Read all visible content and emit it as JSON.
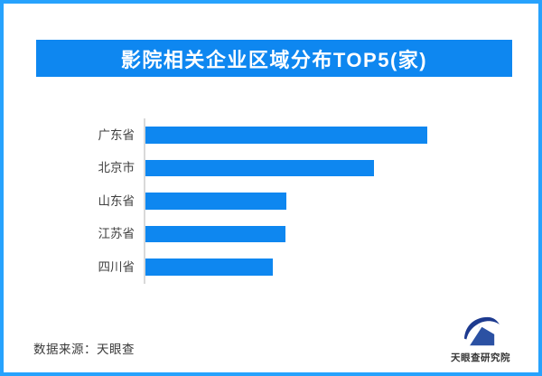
{
  "page": {
    "background": "#ffffff",
    "border_color": "#27a2fd"
  },
  "header": {
    "title": "影院相关企业区域分布TOP5(家)",
    "background": "#0e87f0",
    "text_color": "#ffffff"
  },
  "chart_data": {
    "type": "bar",
    "orientation": "horizontal",
    "title": "影院相关企业区域分布TOP5(家)",
    "categories": [
      "广东省",
      "北京市",
      "山东省",
      "江苏省",
      "四川省"
    ],
    "values": [
      100,
      81,
      50,
      49.5,
      45
    ],
    "value_note": "no numeric axis or data labels visible; values estimated relative to longest bar = 100",
    "xlim": [
      0,
      130
    ],
    "xlabel": "",
    "ylabel": "",
    "grid": false,
    "legend": false,
    "bar_color": "#0e87f0",
    "axis_line_color": "#d9d9d9",
    "label_color": "#404040"
  },
  "footer": {
    "source_text": "数据来源：天眼查",
    "source_color": "#3a3a3a",
    "logo": {
      "icon": "tianyancha-eye-logo",
      "label": "天眼查研究院",
      "label_color": "#333333",
      "color_dark": "#1d3a8f",
      "color_mid": "#2b51a3"
    }
  }
}
